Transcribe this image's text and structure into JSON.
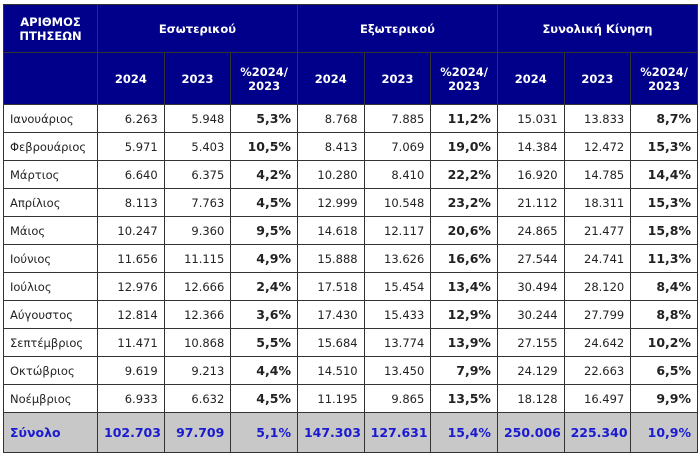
{
  "header": {
    "corner": "ΑΡΙΘΜΟΣ ΠΤΗΣΕΩΝ",
    "groups": [
      "Εσωτερικού",
      "Εξωτερικού",
      "Συνολική Κίνηση"
    ],
    "sub": [
      "2024",
      "2023",
      "%2024/ 2023"
    ]
  },
  "rows": [
    [
      "Ιανουάριος",
      "6.263",
      "5.948",
      "5,3%",
      "8.768",
      "7.885",
      "11,2%",
      "15.031",
      "13.833",
      "8,7%"
    ],
    [
      "Φεβρουάριος",
      "5.971",
      "5.403",
      "10,5%",
      "8.413",
      "7.069",
      "19,0%",
      "14.384",
      "12.472",
      "15,3%"
    ],
    [
      "Μάρτιος",
      "6.640",
      "6.375",
      "4,2%",
      "10.280",
      "8.410",
      "22,2%",
      "16.920",
      "14.785",
      "14,4%"
    ],
    [
      "Απρίλιος",
      "8.113",
      "7.763",
      "4,5%",
      "12.999",
      "10.548",
      "23,2%",
      "21.112",
      "18.311",
      "15,3%"
    ],
    [
      "Μάιος",
      "10.247",
      "9.360",
      "9,5%",
      "14.618",
      "12.117",
      "20,6%",
      "24.865",
      "21.477",
      "15,8%"
    ],
    [
      "Ιούνιος",
      "11.656",
      "11.115",
      "4,9%",
      "15.888",
      "13.626",
      "16,6%",
      "27.544",
      "24.741",
      "11,3%"
    ],
    [
      "Ιούλιος",
      "12.976",
      "12.666",
      "2,4%",
      "17.518",
      "15.454",
      "13,4%",
      "30.494",
      "28.120",
      "8,4%"
    ],
    [
      "Αύγουστος",
      "12.814",
      "12.366",
      "3,6%",
      "17.430",
      "15.433",
      "12,9%",
      "30.244",
      "27.799",
      "8,8%"
    ],
    [
      "Σεπτέμβριος",
      "11.471",
      "10.868",
      "5,5%",
      "15.684",
      "13.774",
      "13,9%",
      "27.155",
      "24.642",
      "10,2%"
    ],
    [
      "Οκτώβριος",
      "9.619",
      "9.213",
      "4,4%",
      "14.510",
      "13.450",
      "7,9%",
      "24.129",
      "22.663",
      "6,5%"
    ],
    [
      "Νοέμβριος",
      "6.933",
      "6.632",
      "4,5%",
      "11.195",
      "9.865",
      "13,5%",
      "18.128",
      "16.497",
      "9,9%"
    ]
  ],
  "total": [
    "Σύνολο",
    "102.703",
    "97.709",
    "5,1%",
    "147.303",
    "127.631",
    "15,4%",
    "250.006",
    "225.340",
    "10,9%"
  ]
}
